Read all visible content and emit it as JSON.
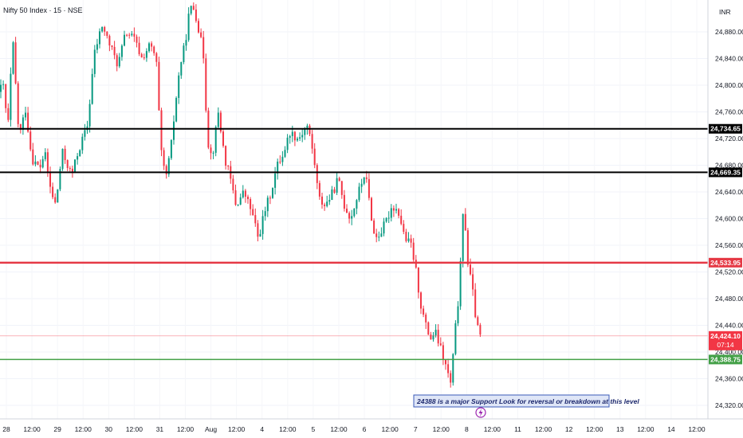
{
  "header": {
    "title": "Nifty 50 Index · 15 · NSE",
    "currency": "INR"
  },
  "chart_data": {
    "type": "candlestick",
    "ylim": [
      24300,
      24920
    ],
    "y_ticks": [
      24880,
      24840,
      24800,
      24760,
      24720,
      24680,
      24640,
      24600,
      24560,
      24520,
      24480,
      24440,
      24400,
      24360,
      24320
    ],
    "x_ticks": [
      "28",
      "12:00",
      "29",
      "12:00",
      "30",
      "12:00",
      "31",
      "12:00",
      "Aug",
      "12:00",
      "4",
      "12:00",
      "5",
      "12:00",
      "6",
      "12:00",
      "7",
      "12:00",
      "8",
      "12:00",
      "11",
      "12:00",
      "12",
      "12:00",
      "13",
      "12:00",
      "14",
      "12:00"
    ],
    "levels": [
      {
        "value": 24734.65,
        "label": "24,734.65",
        "color": "#000000",
        "width": 2
      },
      {
        "value": 24669.35,
        "label": "24,669.35",
        "color": "#000000",
        "width": 2
      },
      {
        "value": 24533.95,
        "label": "24,533.95",
        "color": "#e53945",
        "width": 2.5
      },
      {
        "value": 24388.75,
        "label": "24,388.75",
        "color": "#43a047",
        "width": 1.5
      }
    ],
    "last_price": {
      "value": 24424.1,
      "label": "24,424.10",
      "countdown": "07:14",
      "color": "#f23645"
    },
    "annotation": {
      "text": "24388 is a major Support Look for reversal or breakdown at this level",
      "near_date": "8"
    },
    "colors": {
      "up": "#089981",
      "down": "#f23645"
    },
    "waypoints": [
      [
        0,
        24790
      ],
      [
        6,
        24800
      ],
      [
        12,
        24735
      ],
      [
        18,
        24870
      ],
      [
        26,
        24720
      ],
      [
        34,
        24765
      ],
      [
        42,
        24690
      ],
      [
        52,
        24675
      ],
      [
        58,
        24700
      ],
      [
        66,
        24640
      ],
      [
        72,
        24620
      ],
      [
        80,
        24700
      ],
      [
        92,
        24665
      ],
      [
        100,
        24700
      ],
      [
        112,
        24740
      ],
      [
        120,
        24845
      ],
      [
        130,
        24890
      ],
      [
        140,
        24860
      ],
      [
        150,
        24830
      ],
      [
        160,
        24880
      ],
      [
        170,
        24870
      ],
      [
        180,
        24840
      ],
      [
        190,
        24860
      ],
      [
        198,
        24840
      ],
      [
        204,
        24700
      ],
      [
        210,
        24660
      ],
      [
        216,
        24700
      ],
      [
        222,
        24770
      ],
      [
        228,
        24830
      ],
      [
        234,
        24860
      ],
      [
        240,
        24915
      ],
      [
        246,
        24915
      ],
      [
        252,
        24880
      ],
      [
        258,
        24840
      ],
      [
        262,
        24720
      ],
      [
        268,
        24690
      ],
      [
        276,
        24760
      ],
      [
        284,
        24690
      ],
      [
        290,
        24665
      ],
      [
        298,
        24620
      ],
      [
        308,
        24640
      ],
      [
        318,
        24610
      ],
      [
        326,
        24570
      ],
      [
        334,
        24610
      ],
      [
        342,
        24640
      ],
      [
        350,
        24680
      ],
      [
        358,
        24700
      ],
      [
        366,
        24730
      ],
      [
        376,
        24720
      ],
      [
        388,
        24740
      ],
      [
        396,
        24690
      ],
      [
        402,
        24630
      ],
      [
        410,
        24620
      ],
      [
        420,
        24640
      ],
      [
        426,
        24660
      ],
      [
        434,
        24620
      ],
      [
        442,
        24600
      ],
      [
        452,
        24640
      ],
      [
        460,
        24670
      ],
      [
        466,
        24620
      ],
      [
        472,
        24570
      ],
      [
        480,
        24580
      ],
      [
        488,
        24600
      ],
      [
        494,
        24620
      ],
      [
        502,
        24610
      ],
      [
        510,
        24570
      ],
      [
        518,
        24560
      ],
      [
        524,
        24520
      ],
      [
        530,
        24470
      ],
      [
        536,
        24440
      ],
      [
        542,
        24420
      ],
      [
        548,
        24430
      ],
      [
        556,
        24400
      ],
      [
        562,
        24375
      ],
      [
        568,
        24350
      ],
      [
        572,
        24420
      ],
      [
        578,
        24490
      ],
      [
        584,
        24630
      ],
      [
        588,
        24540
      ],
      [
        594,
        24500
      ],
      [
        600,
        24440
      ],
      [
        604,
        24424
      ]
    ]
  }
}
